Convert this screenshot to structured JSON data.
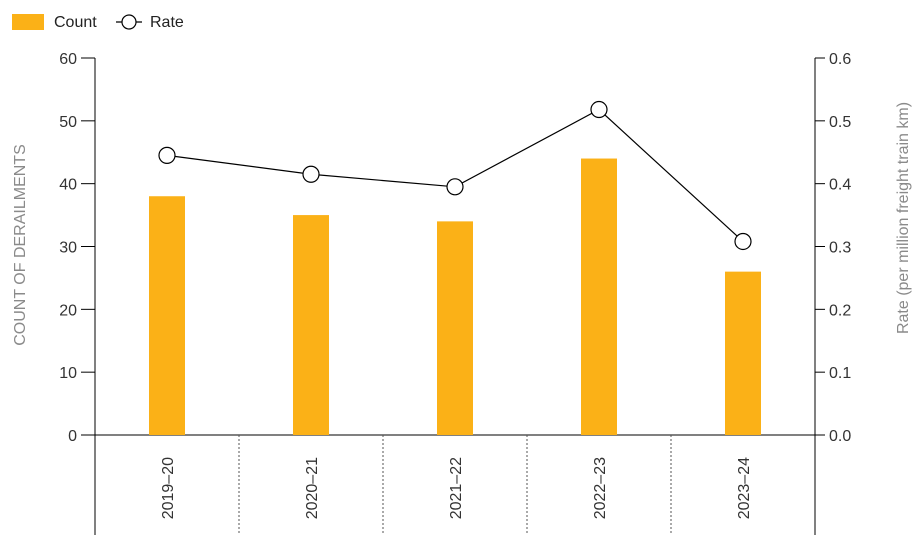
{
  "chart_data": {
    "type": "bar",
    "categories": [
      "2019–20",
      "2020–21",
      "2021–22",
      "2022–23",
      "2023–24"
    ],
    "series": [
      {
        "name": "Count",
        "type": "bar",
        "axis": "left",
        "color": "#FBB117",
        "values": [
          38,
          35,
          34,
          44,
          26
        ]
      },
      {
        "name": "Rate",
        "type": "line",
        "axis": "right",
        "color": "#000000",
        "marker": "open-circle",
        "values": [
          0.445,
          0.415,
          0.395,
          0.518,
          0.308
        ]
      }
    ],
    "ylabel": "COUNT OF DERAILMENTS",
    "y2label": "Rate (per million freight train km)",
    "ylim": [
      0,
      60
    ],
    "y2lim": [
      0.0,
      0.6
    ],
    "yticks": [
      "0",
      "10",
      "20",
      "30",
      "40",
      "50",
      "60"
    ],
    "y2ticks": [
      "0.0",
      "0.1",
      "0.2",
      "0.3",
      "0.4",
      "0.5",
      "0.6"
    ],
    "legend": {
      "placement": "top-left",
      "entries": [
        "Count",
        "Rate"
      ]
    },
    "grid": false
  }
}
